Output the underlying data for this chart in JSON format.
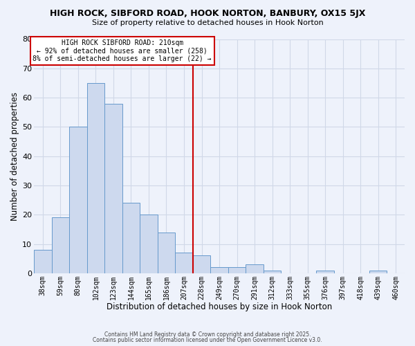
{
  "title": "HIGH ROCK, SIBFORD ROAD, HOOK NORTON, BANBURY, OX15 5JX",
  "subtitle": "Size of property relative to detached houses in Hook Norton",
  "xlabel": "Distribution of detached houses by size in Hook Norton",
  "ylabel": "Number of detached properties",
  "bar_labels": [
    "38sqm",
    "59sqm",
    "80sqm",
    "102sqm",
    "123sqm",
    "144sqm",
    "165sqm",
    "186sqm",
    "207sqm",
    "228sqm",
    "249sqm",
    "270sqm",
    "291sqm",
    "312sqm",
    "333sqm",
    "355sqm",
    "376sqm",
    "397sqm",
    "418sqm",
    "439sqm",
    "460sqm"
  ],
  "bar_values": [
    8,
    19,
    50,
    65,
    58,
    24,
    20,
    14,
    7,
    6,
    2,
    2,
    3,
    1,
    0,
    0,
    1,
    0,
    0,
    1,
    0
  ],
  "bar_color": "#cdd9ee",
  "bar_edge_color": "#6699cc",
  "vline_color": "#cc0000",
  "ylim": [
    0,
    80
  ],
  "yticks": [
    0,
    10,
    20,
    30,
    40,
    50,
    60,
    70,
    80
  ],
  "grid_color": "#d0d8e8",
  "background_color": "#eef2fb",
  "annotation_line1": "HIGH ROCK SIBFORD ROAD: 210sqm",
  "annotation_line2": "← 92% of detached houses are smaller (258)",
  "annotation_line3": "8% of semi-detached houses are larger (22) →",
  "annotation_box_color": "#ffffff",
  "annotation_box_edge": "#cc0000",
  "footer_line1": "Contains HM Land Registry data © Crown copyright and database right 2025.",
  "footer_line2": "Contains public sector information licensed under the Open Government Licence v3.0."
}
